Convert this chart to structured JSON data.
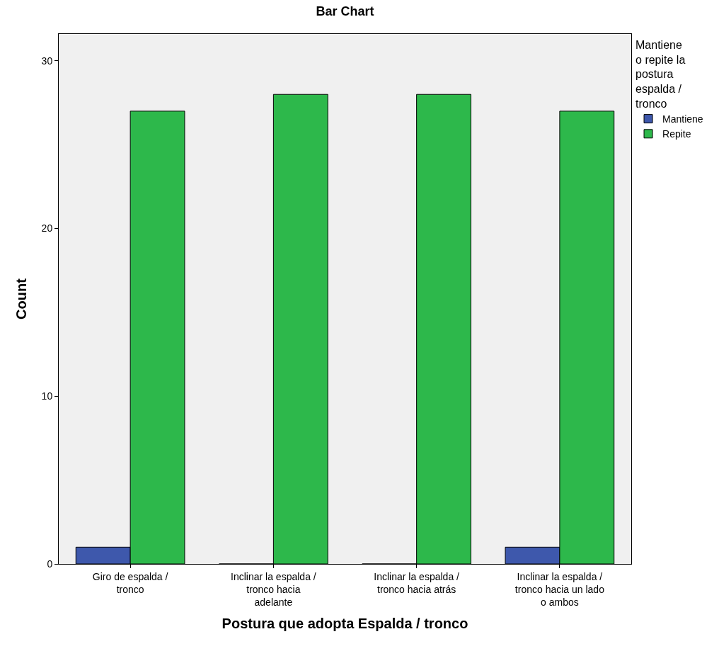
{
  "chart_data": {
    "type": "bar",
    "title": "Bar Chart",
    "xlabel": "Postura que adopta Espalda / tronco",
    "ylabel": "Count",
    "legend_title": "Mantiene\no repite la\npostura\nespalda /\ntronco",
    "categories": [
      "Giro de espalda /\ntronco",
      "Inclinar la espalda /\ntronco hacia\nadelante",
      "Inclinar la espalda /\ntronco hacia atrás",
      "Inclinar la espalda /\ntronco hacia un lado\no ambos"
    ],
    "series": [
      {
        "name": "Mantiene",
        "color": "#3e58ac",
        "values": [
          1,
          0,
          0,
          1
        ]
      },
      {
        "name": "Repite",
        "color": "#2db84b",
        "values": [
          27,
          28,
          28,
          27
        ]
      }
    ],
    "ylim": [
      0,
      31.6
    ],
    "yticks": [
      0,
      10,
      20,
      30
    ],
    "grid": false,
    "legend": "top right"
  }
}
